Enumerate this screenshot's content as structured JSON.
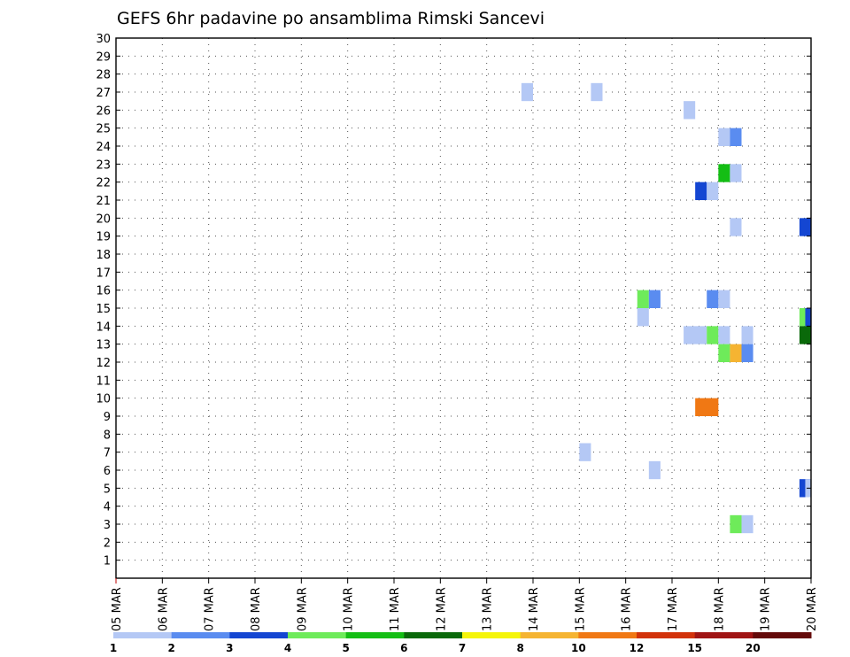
{
  "chart_data": {
    "type": "heatmap",
    "title": "GEFS 6hr padavine po ansamblima Rimski Sancevi",
    "xlabel": "",
    "ylabel": "",
    "y_ticks": [
      "1",
      "2",
      "3",
      "4",
      "5",
      "6",
      "7",
      "8",
      "9",
      "10",
      "11",
      "12",
      "13",
      "14",
      "15",
      "16",
      "17",
      "18",
      "19",
      "20",
      "21",
      "22",
      "23",
      "24",
      "25",
      "26",
      "27",
      "28",
      "29",
      "30"
    ],
    "x_ticks": [
      "05 MAR",
      "06 MAR",
      "07 MAR",
      "08 MAR",
      "09 MAR",
      "10 MAR",
      "11 MAR",
      "12 MAR",
      "13 MAR",
      "14 MAR",
      "15 MAR",
      "16 MAR",
      "17 MAR",
      "18 MAR",
      "19 MAR",
      "20 MAR"
    ],
    "x_range": [
      0,
      15
    ],
    "y_range": [
      0,
      30
    ],
    "grid": true,
    "grid_style": "dotted",
    "legend": {
      "placement": "bottom",
      "thresholds": [
        "1",
        "2",
        "3",
        "4",
        "5",
        "6",
        "7",
        "8",
        "10",
        "12",
        "15",
        "20"
      ],
      "colors": [
        "#b4c8f5",
        "#5a8cf0",
        "#1446d2",
        "#6eeb5a",
        "#14be14",
        "#0a690a",
        "#f5f50a",
        "#f5b432",
        "#f07814",
        "#d2320a",
        "#a01414",
        "#640a0a"
      ]
    },
    "cells": [
      {
        "day": 8.875,
        "member": 27,
        "width": 1,
        "height": 1,
        "color": "#b4c8f5"
      },
      {
        "day": 10.375,
        "member": 27,
        "width": 1,
        "height": 1,
        "color": "#b4c8f5"
      },
      {
        "day": 12.375,
        "member": 26,
        "width": 1,
        "height": 1,
        "color": "#b4c8f5"
      },
      {
        "day": 13.125,
        "member": 24.5,
        "width": 1,
        "height": 1,
        "color": "#b4c8f5"
      },
      {
        "day": 13.375,
        "member": 24.5,
        "width": 1,
        "height": 1,
        "color": "#5a8cf0"
      },
      {
        "day": 13.125,
        "member": 22.5,
        "width": 1,
        "height": 1,
        "color": "#14be14"
      },
      {
        "day": 13.375,
        "member": 22.5,
        "width": 1,
        "height": 1,
        "color": "#b4c8f5"
      },
      {
        "day": 12.625,
        "member": 21.5,
        "width": 1,
        "height": 1,
        "color": "#1446d2"
      },
      {
        "day": 12.875,
        "member": 21.5,
        "width": 1,
        "height": 1,
        "color": "#b4c8f5"
      },
      {
        "day": 13.375,
        "member": 19.5,
        "width": 1,
        "height": 1,
        "color": "#b4c8f5"
      },
      {
        "day": 14.875,
        "member": 19.5,
        "width": 1,
        "height": 1,
        "color": "#1446d2"
      },
      {
        "day": 11.375,
        "member": 15.5,
        "width": 1,
        "height": 1,
        "color": "#6eeb5a"
      },
      {
        "day": 11.625,
        "member": 15.5,
        "width": 1,
        "height": 1,
        "color": "#5a8cf0"
      },
      {
        "day": 12.875,
        "member": 15.5,
        "width": 1,
        "height": 1,
        "color": "#5a8cf0"
      },
      {
        "day": 13.125,
        "member": 15.5,
        "width": 1,
        "height": 1,
        "color": "#b4c8f5"
      },
      {
        "day": 11.375,
        "member": 14.5,
        "width": 1,
        "height": 1,
        "color": "#b4c8f5"
      },
      {
        "day": 14.875,
        "member": 14.5,
        "width": 1,
        "height": 1,
        "color": "#6eeb5a"
      },
      {
        "day": 15.0,
        "member": 14.5,
        "width": 1,
        "height": 1,
        "color": "#1446d2"
      },
      {
        "day": 12.5,
        "member": 13.5,
        "width": 2,
        "height": 1,
        "color": "#b4c8f5"
      },
      {
        "day": 12.875,
        "member": 13.5,
        "width": 1,
        "height": 1,
        "color": "#6eeb5a"
      },
      {
        "day": 13.125,
        "member": 13.5,
        "width": 1,
        "height": 1,
        "color": "#b4c8f5"
      },
      {
        "day": 13.625,
        "member": 13.5,
        "width": 1,
        "height": 1,
        "color": "#b4c8f5"
      },
      {
        "day": 14.875,
        "member": 13.5,
        "width": 1,
        "height": 1,
        "color": "#0a690a"
      },
      {
        "day": 13.125,
        "member": 12.5,
        "width": 1,
        "height": 1,
        "color": "#6eeb5a"
      },
      {
        "day": 13.375,
        "member": 12.5,
        "width": 1,
        "height": 1,
        "color": "#f5b432"
      },
      {
        "day": 13.625,
        "member": 12.5,
        "width": 1,
        "height": 1,
        "color": "#5a8cf0"
      },
      {
        "day": 12.75,
        "member": 9.5,
        "width": 2,
        "height": 1,
        "color": "#f07814"
      },
      {
        "day": 10.125,
        "member": 7,
        "width": 1,
        "height": 1,
        "color": "#b4c8f5"
      },
      {
        "day": 11.625,
        "member": 6,
        "width": 1,
        "height": 1,
        "color": "#b4c8f5"
      },
      {
        "day": 14.875,
        "member": 5,
        "width": 1,
        "height": 1,
        "color": "#1446d2"
      },
      {
        "day": 15.0,
        "member": 5,
        "width": 1,
        "height": 1,
        "color": "#b4c8f5"
      },
      {
        "day": 13.375,
        "member": 3,
        "width": 1,
        "height": 1,
        "color": "#6eeb5a"
      },
      {
        "day": 13.625,
        "member": 3,
        "width": 1,
        "height": 1,
        "color": "#b4c8f5"
      }
    ]
  }
}
